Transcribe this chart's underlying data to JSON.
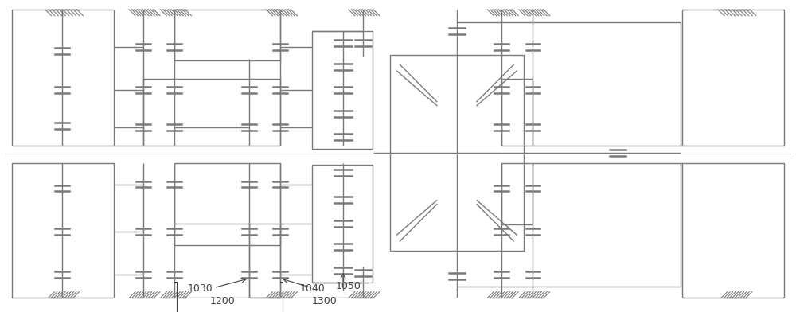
{
  "bg_color": "#ffffff",
  "line_color": "#7a7a7a",
  "line_width": 1.0,
  "fig_width": 10.0,
  "fig_height": 3.92,
  "dpi": 100
}
